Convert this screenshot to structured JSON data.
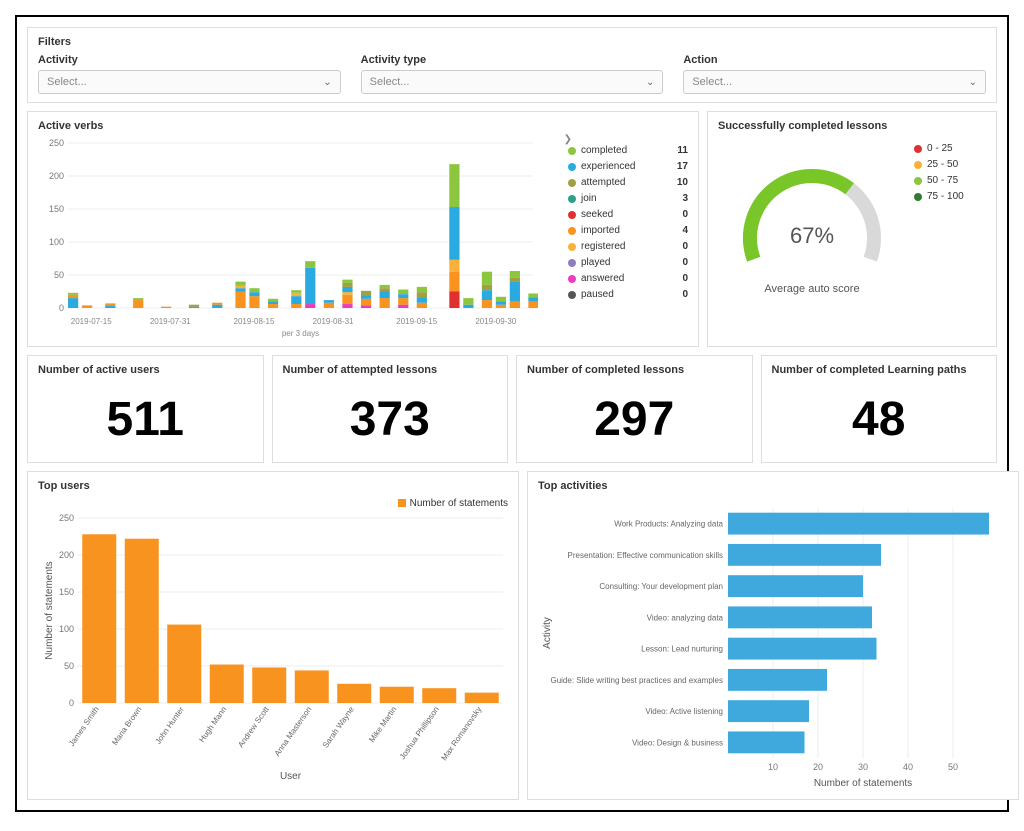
{
  "filters": {
    "title": "Filters",
    "fields": [
      {
        "label": "Activity",
        "placeholder": "Select..."
      },
      {
        "label": "Activity type",
        "placeholder": "Select..."
      },
      {
        "label": "Action",
        "placeholder": "Select..."
      }
    ]
  },
  "activeVerbs": {
    "title": "Active verbs",
    "type": "stacked-bar",
    "y_axis": {
      "min": 0,
      "max": 250,
      "step": 50
    },
    "x_caption": "per 3 days",
    "x_ticks": [
      "2019-07-15",
      "2019-07-31",
      "2019-08-15",
      "2019-08-31",
      "2019-09-15",
      "2019-09-30"
    ],
    "x_tick_positions": [
      5,
      22,
      40,
      57,
      75,
      92
    ],
    "gridline_color": "#eeeeee",
    "legend": [
      {
        "label": "completed",
        "color": "#8cc63f",
        "value": 11
      },
      {
        "label": "experienced",
        "color": "#29abe2",
        "value": 17
      },
      {
        "label": "attempted",
        "color": "#a0a040",
        "value": 10
      },
      {
        "label": "join",
        "color": "#2ca089",
        "value": 3
      },
      {
        "label": "seeked",
        "color": "#e03030",
        "value": 0
      },
      {
        "label": "imported",
        "color": "#f7931e",
        "value": 4
      },
      {
        "label": "registered",
        "color": "#fbb03b",
        "value": 0
      },
      {
        "label": "played",
        "color": "#8e7cc3",
        "value": 0
      },
      {
        "label": "answered",
        "color": "#e83ebf",
        "value": 0
      },
      {
        "label": "paused",
        "color": "#555555",
        "value": 0
      }
    ],
    "bars": [
      {
        "x": 0,
        "segments": [
          [
            "#29abe2",
            15
          ],
          [
            "#f7931e",
            5
          ],
          [
            "#8cc63f",
            3
          ]
        ]
      },
      {
        "x": 3,
        "segments": [
          [
            "#f7931e",
            4
          ]
        ]
      },
      {
        "x": 8,
        "segments": [
          [
            "#29abe2",
            3
          ],
          [
            "#f7931e",
            4
          ]
        ]
      },
      {
        "x": 14,
        "segments": [
          [
            "#f7931e",
            12
          ],
          [
            "#8cc63f",
            3
          ]
        ]
      },
      {
        "x": 20,
        "segments": [
          [
            "#f7931e",
            2
          ]
        ]
      },
      {
        "x": 26,
        "segments": [
          [
            "#29abe2",
            2
          ],
          [
            "#a0a040",
            3
          ]
        ]
      },
      {
        "x": 31,
        "segments": [
          [
            "#29abe2",
            5
          ],
          [
            "#f7931e",
            3
          ]
        ]
      },
      {
        "x": 36,
        "segments": [
          [
            "#f7931e",
            25
          ],
          [
            "#29abe2",
            5
          ],
          [
            "#fbb03b",
            4
          ],
          [
            "#8cc63f",
            6
          ]
        ]
      },
      {
        "x": 39,
        "segments": [
          [
            "#f7931e",
            18
          ],
          [
            "#29abe2",
            6
          ],
          [
            "#8cc63f",
            6
          ]
        ]
      },
      {
        "x": 43,
        "segments": [
          [
            "#f7931e",
            6
          ],
          [
            "#29abe2",
            4
          ],
          [
            "#8cc63f",
            4
          ]
        ]
      },
      {
        "x": 48,
        "segments": [
          [
            "#f7931e",
            6
          ],
          [
            "#29abe2",
            12
          ],
          [
            "#fbb03b",
            5
          ],
          [
            "#8cc63f",
            4
          ]
        ]
      },
      {
        "x": 51,
        "segments": [
          [
            "#e83ebf",
            6
          ],
          [
            "#29abe2",
            55
          ],
          [
            "#8cc63f",
            10
          ]
        ]
      },
      {
        "x": 55,
        "segments": [
          [
            "#f7931e",
            8
          ],
          [
            "#29abe2",
            4
          ]
        ]
      },
      {
        "x": 59,
        "segments": [
          [
            "#e83ebf",
            6
          ],
          [
            "#f7931e",
            14
          ],
          [
            "#fbb03b",
            4
          ],
          [
            "#29abe2",
            8
          ],
          [
            "#a0a040",
            6
          ],
          [
            "#8cc63f",
            5
          ]
        ]
      },
      {
        "x": 63,
        "segments": [
          [
            "#e83ebf",
            4
          ],
          [
            "#f7931e",
            10
          ],
          [
            "#29abe2",
            5
          ],
          [
            "#a0a040",
            7
          ]
        ]
      },
      {
        "x": 67,
        "segments": [
          [
            "#f7931e",
            15
          ],
          [
            "#29abe2",
            10
          ],
          [
            "#a0a040",
            5
          ],
          [
            "#8cc63f",
            5
          ]
        ]
      },
      {
        "x": 71,
        "segments": [
          [
            "#e83ebf",
            5
          ],
          [
            "#f7931e",
            10
          ],
          [
            "#29abe2",
            6
          ],
          [
            "#8cc63f",
            7
          ]
        ]
      },
      {
        "x": 75,
        "segments": [
          [
            "#f7931e",
            8
          ],
          [
            "#29abe2",
            8
          ],
          [
            "#a0a040",
            8
          ],
          [
            "#8cc63f",
            8
          ]
        ]
      },
      {
        "x": 82,
        "segments": [
          [
            "#e03030",
            25
          ],
          [
            "#f7931e",
            30
          ],
          [
            "#fbb03b",
            18
          ],
          [
            "#29abe2",
            80
          ],
          [
            "#8cc63f",
            65
          ]
        ]
      },
      {
        "x": 85,
        "segments": [
          [
            "#29abe2",
            5
          ],
          [
            "#8cc63f",
            10
          ]
        ]
      },
      {
        "x": 89,
        "segments": [
          [
            "#f7931e",
            12
          ],
          [
            "#29abe2",
            15
          ],
          [
            "#a0a040",
            8
          ],
          [
            "#8cc63f",
            20
          ]
        ]
      },
      {
        "x": 92,
        "segments": [
          [
            "#f7931e",
            5
          ],
          [
            "#29abe2",
            5
          ],
          [
            "#8cc63f",
            7
          ]
        ]
      },
      {
        "x": 95,
        "segments": [
          [
            "#f7931e",
            10
          ],
          [
            "#29abe2",
            30
          ],
          [
            "#a0a040",
            6
          ],
          [
            "#8cc63f",
            10
          ]
        ]
      },
      {
        "x": 99,
        "segments": [
          [
            "#f7931e",
            10
          ],
          [
            "#29abe2",
            6
          ],
          [
            "#8cc63f",
            6
          ]
        ]
      }
    ]
  },
  "success": {
    "title": "Successfully completed lessons",
    "percent": 67,
    "caption": "Average auto score",
    "gauge": {
      "track_color": "#d9d9d9",
      "fill_color": "#78c628",
      "stroke_width": 14
    },
    "legend": [
      {
        "label": "0 - 25",
        "color": "#e03030"
      },
      {
        "label": "25 - 50",
        "color": "#fbb03b"
      },
      {
        "label": "50 - 75",
        "color": "#8cc63f"
      },
      {
        "label": "75 - 100",
        "color": "#2e7d32"
      }
    ]
  },
  "metrics": [
    {
      "title": "Number of active users",
      "value": "511"
    },
    {
      "title": "Number of attempted lessons",
      "value": "373"
    },
    {
      "title": "Number of completed lessons",
      "value": "297"
    },
    {
      "title": "Number of completed Learning paths",
      "value": "48"
    }
  ],
  "topUsers": {
    "title": "Top users",
    "type": "bar",
    "legend_label": "Number of statements",
    "bar_color": "#f7931e",
    "y_label": "Number of statements",
    "x_label": "User",
    "y_axis": {
      "min": 0,
      "max": 250,
      "step": 50
    },
    "bars": [
      {
        "label": "James Smith",
        "value": 228
      },
      {
        "label": "Maria Brown",
        "value": 222
      },
      {
        "label": "John Hunter",
        "value": 106
      },
      {
        "label": "Hugh Mann",
        "value": 52
      },
      {
        "label": "Andrew Scott",
        "value": 48
      },
      {
        "label": "Anna Masterson",
        "value": 44
      },
      {
        "label": "Sarah Wayne",
        "value": 26
      },
      {
        "label": "Mike Martin",
        "value": 22
      },
      {
        "label": "Joshua Phillipson",
        "value": 20
      },
      {
        "label": "Max Romanovsky",
        "value": 14
      }
    ]
  },
  "topActivities": {
    "title": "Top activities",
    "type": "horizontal-bar",
    "bar_color": "#3fa9dd",
    "y_label": "Activity",
    "x_label": "Number of statements",
    "x_axis": {
      "min": 0,
      "max": 60,
      "step": 10
    },
    "bars": [
      {
        "label": "Work Products: Analyzing data",
        "value": 58
      },
      {
        "label": "Presentation: Effective communication skills",
        "value": 34
      },
      {
        "label": "Consulting: Your development plan",
        "value": 30
      },
      {
        "label": "Video: analyzing data",
        "value": 32
      },
      {
        "label": "Lesson: Lead nurturing",
        "value": 33
      },
      {
        "label": "Guide: Slide writing best practices and examples",
        "value": 22
      },
      {
        "label": "Video: Active listening",
        "value": 18
      },
      {
        "label": "Video: Design & business",
        "value": 17
      }
    ]
  }
}
